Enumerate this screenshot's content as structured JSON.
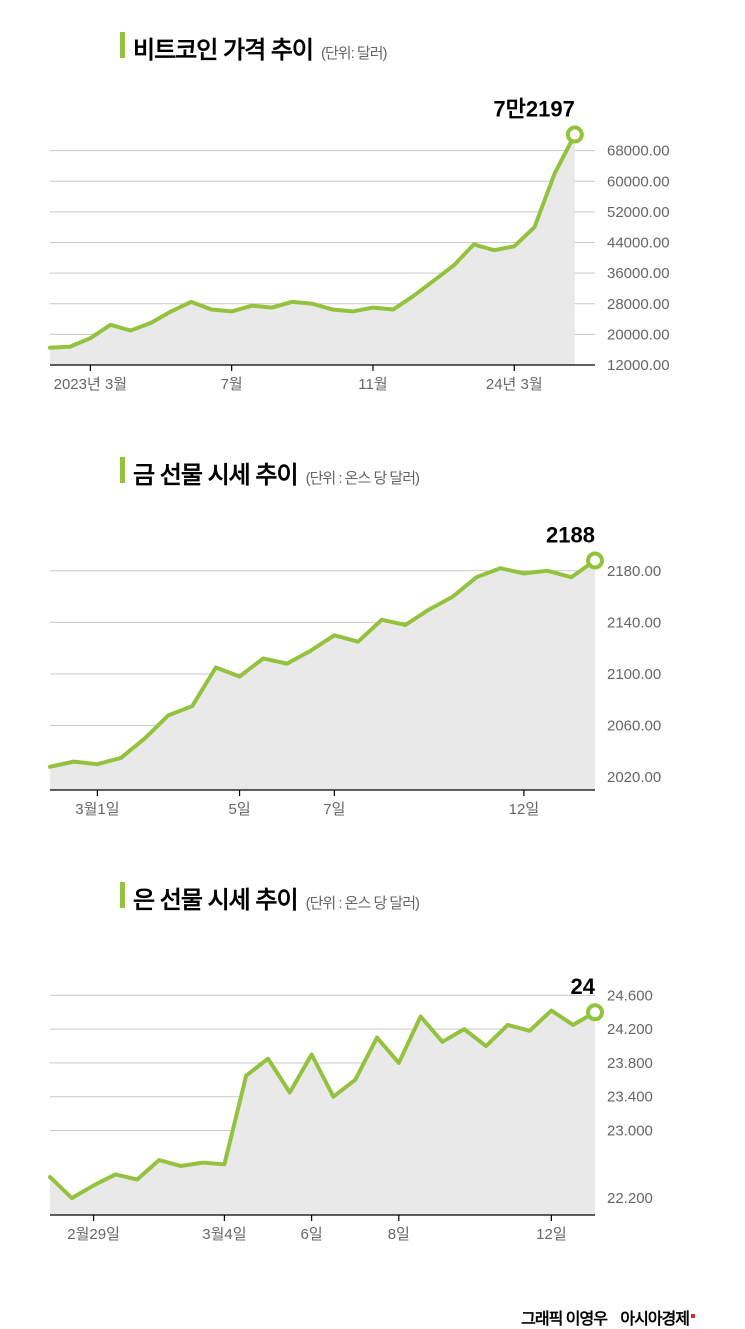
{
  "accent_color": "#93c33e",
  "text_color": "#000000",
  "footer": {
    "credit": "그래픽 이영우",
    "brand": "아시아경제",
    "brand_mark_color": "#d92b2b"
  },
  "chart1": {
    "title": "비트코인 가격 추이",
    "title_fontsize": 24,
    "unit": "(단위: 달러)",
    "unit_fontsize": 15,
    "unit_color": "#666666",
    "callout_label": "7만2197",
    "callout_fontsize": 22,
    "type": "area",
    "line_color": "#93c33e",
    "line_width": 4,
    "fill_color": "#e9e9e9",
    "background_color": "#ffffff",
    "grid_color": "#c9c9c9",
    "axis_color": "#000000",
    "tick_font_color": "#666666",
    "tick_fontsize": 15,
    "ytick_offset_right": 110,
    "yticks": [
      12000,
      20000,
      28000,
      36000,
      44000,
      52000,
      60000,
      68000
    ],
    "ytick_labels": [
      "12000.00",
      "20000.00",
      "28000.00",
      "36000.00",
      "44000.00",
      "52000.00",
      "60000.00",
      "68000.00"
    ],
    "ylim": [
      12000,
      76000
    ],
    "xlim": [
      0,
      27
    ],
    "xticks": [
      2,
      9,
      16,
      23
    ],
    "xtick_labels": [
      "2023년 3월",
      "7월",
      "11월",
      "24년 3월"
    ],
    "series": [
      16500,
      16800,
      19000,
      22500,
      21000,
      23000,
      26000,
      28500,
      26500,
      26000,
      27500,
      27000,
      28500,
      28000,
      26500,
      26000,
      27000,
      26500,
      30000,
      34000,
      38000,
      43500,
      42000,
      43000,
      48000,
      62000,
      72197
    ],
    "end_point_marker": {
      "fill": "#ffffff",
      "stroke": "#93c33e",
      "stroke_width": 4,
      "radius": 7
    }
  },
  "chart2": {
    "title": "금 선물 시세 추이",
    "title_fontsize": 24,
    "unit": "(단위 : 온스 당 달러)",
    "unit_fontsize": 15,
    "unit_color": "#666666",
    "callout_label": "2188",
    "callout_fontsize": 22,
    "type": "area",
    "line_color": "#93c33e",
    "line_width": 4,
    "fill_color": "#e9e9e9",
    "background_color": "#ffffff",
    "grid_color": "#c9c9c9",
    "axis_color": "#000000",
    "tick_font_color": "#666666",
    "tick_fontsize": 15,
    "ytick_offset_right": 110,
    "yticks": [
      2020,
      2060,
      2100,
      2140,
      2180
    ],
    "ytick_labels": [
      "2020.00",
      "2060.00",
      "2100.00",
      "2140.00",
      "2180.00"
    ],
    "ylim": [
      2010,
      2200
    ],
    "xlim": [
      0,
      23
    ],
    "xticks": [
      2,
      8,
      12,
      20
    ],
    "xtick_labels": [
      "3월1일",
      "5일",
      "7일",
      "12일"
    ],
    "series": [
      2028,
      2032,
      2030,
      2035,
      2050,
      2068,
      2075,
      2105,
      2098,
      2112,
      2108,
      2118,
      2130,
      2125,
      2142,
      2138,
      2150,
      2160,
      2175,
      2182,
      2178,
      2180,
      2175,
      2188
    ],
    "end_point_marker": {
      "fill": "#ffffff",
      "stroke": "#93c33e",
      "stroke_width": 4,
      "radius": 7
    }
  },
  "chart3": {
    "title": "은 선물 시세 추이",
    "title_fontsize": 24,
    "unit": "(단위 : 온스 당 달러)",
    "unit_fontsize": 15,
    "unit_color": "#666666",
    "callout_label": "24",
    "callout_fontsize": 22,
    "type": "area",
    "line_color": "#93c33e",
    "line_width": 4,
    "fill_color": "#e9e9e9",
    "background_color": "#ffffff",
    "grid_color": "#c9c9c9",
    "axis_color": "#000000",
    "tick_font_color": "#666666",
    "tick_fontsize": 15,
    "ytick_offset_right": 110,
    "yticks": [
      22.2,
      23.0,
      23.4,
      23.8,
      24.2,
      24.6
    ],
    "ytick_labels": [
      "22.200",
      "23.000",
      "23.400",
      "23.800",
      "24.200",
      "24.600"
    ],
    "ylim": [
      22.0,
      24.9
    ],
    "xlim": [
      0,
      25
    ],
    "xticks": [
      2,
      8,
      12,
      16,
      23
    ],
    "xtick_labels": [
      "2월29일",
      "3월4일",
      "6일",
      "8일",
      "12일"
    ],
    "series": [
      22.45,
      22.2,
      22.35,
      22.48,
      22.42,
      22.65,
      22.58,
      22.62,
      22.6,
      23.65,
      23.85,
      23.45,
      23.9,
      23.4,
      23.6,
      24.1,
      23.8,
      24.35,
      24.05,
      24.2,
      24.0,
      24.25,
      24.18,
      24.42,
      24.25,
      24.4
    ],
    "end_point_marker": {
      "fill": "#ffffff",
      "stroke": "#93c33e",
      "stroke_width": 4,
      "radius": 7
    }
  }
}
